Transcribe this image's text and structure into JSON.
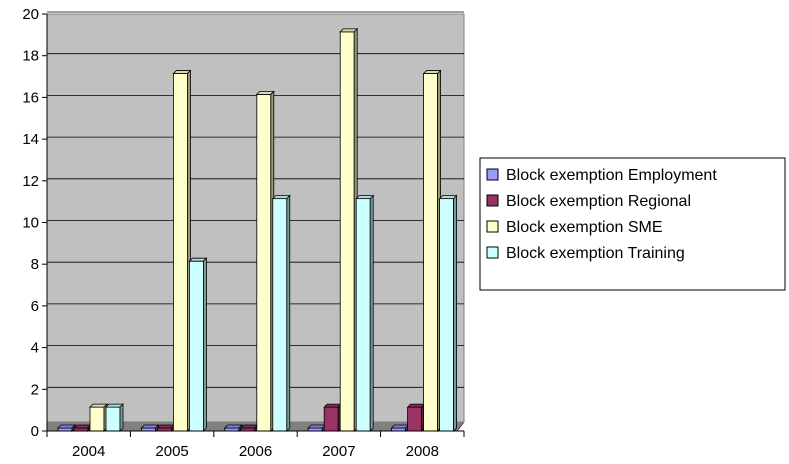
{
  "chart_data": {
    "type": "bar",
    "categories": [
      "2004",
      "2005",
      "2006",
      "2007",
      "2008"
    ],
    "series": [
      {
        "name": "Block exemption Employment",
        "values": [
          0,
          0,
          0,
          0,
          0
        ],
        "color": "#9999FF"
      },
      {
        "name": "Block exemption Regional",
        "values": [
          0,
          0,
          0,
          1,
          1
        ],
        "color": "#993366"
      },
      {
        "name": "Block exemption SME",
        "values": [
          1,
          17,
          16,
          19,
          17
        ],
        "color": "#FFFFCC"
      },
      {
        "name": "Block exemption Training",
        "values": [
          1,
          8,
          11,
          11,
          11
        ],
        "color": "#CCFFFF"
      }
    ],
    "ylim": [
      0,
      20
    ],
    "yticks": [
      0,
      2,
      4,
      6,
      8,
      10,
      12,
      14,
      16,
      18,
      20
    ],
    "grid": true,
    "plot_background": "#C0C0C0",
    "legend_position": "right",
    "bar_style": "3d"
  }
}
